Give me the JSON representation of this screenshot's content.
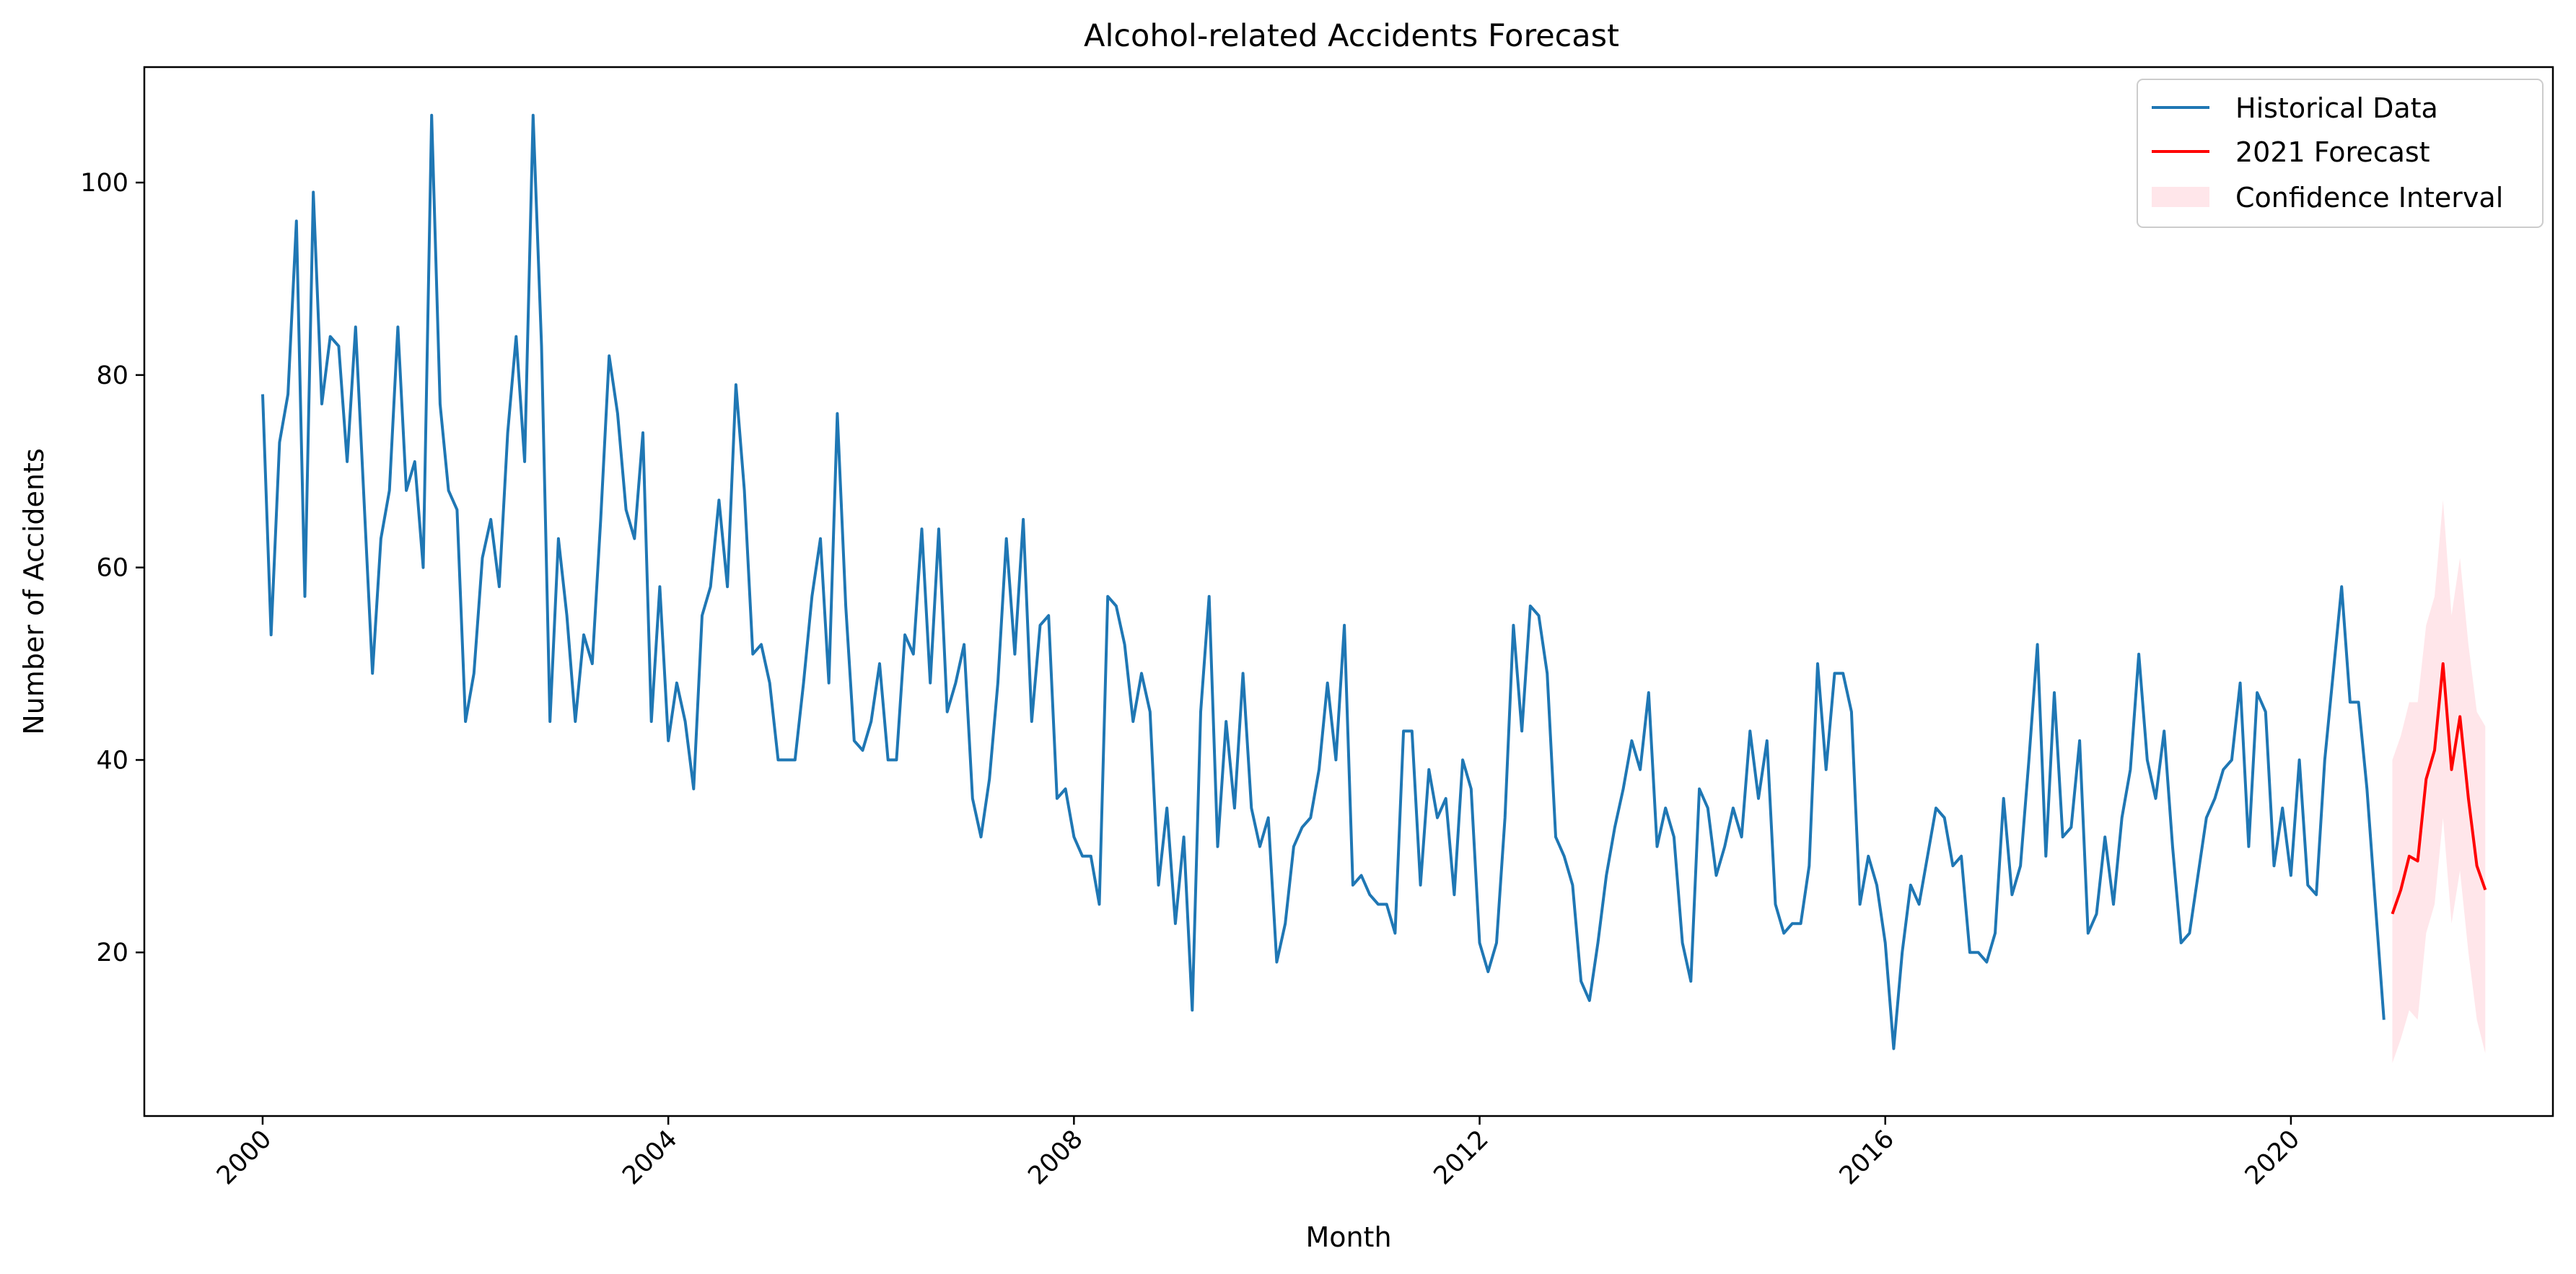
{
  "chart_data": {
    "type": "line",
    "title": "Alcohol-related Accidents Forecast",
    "xlabel": "Month",
    "ylabel": "Number of Accidents",
    "xlim": [
      "1998-11-01",
      "2022-08-01"
    ],
    "ylim": [
      3,
      112
    ],
    "x_ticks": [
      "2000",
      "2004",
      "2008",
      "2012",
      "2016",
      "2020"
    ],
    "y_ticks": [
      20,
      40,
      60,
      80,
      100
    ],
    "grid": false,
    "legend": {
      "placement": "top-right",
      "entries": [
        "Historical Data",
        "2021 Forecast",
        "Confidence Interval"
      ]
    },
    "colors": {
      "historical": "#1f77b4",
      "forecast": "#ff0000",
      "ci_fill": "#ffc0cb"
    },
    "series": [
      {
        "name": "Historical Data",
        "start": "2000-01",
        "step": "month",
        "values": [
          78,
          53,
          73,
          78,
          96,
          57,
          99,
          77,
          84,
          83,
          71,
          85,
          67,
          49,
          63,
          68,
          85,
          68,
          71,
          60,
          107,
          77,
          68,
          66,
          44,
          49,
          61,
          65,
          58,
          74,
          84,
          71,
          107,
          83,
          44,
          63,
          55,
          44,
          53,
          50,
          65,
          82,
          76,
          66,
          63,
          74,
          44,
          58,
          42,
          48,
          44,
          37,
          55,
          58,
          67,
          58,
          79,
          68,
          51,
          52,
          48,
          40,
          40,
          40,
          48,
          57,
          63,
          48,
          76,
          56,
          42,
          41,
          44,
          50,
          40,
          40,
          53,
          51,
          64,
          48,
          64,
          45,
          48,
          52,
          36,
          32,
          38,
          48,
          63,
          51,
          65,
          44,
          54,
          55,
          36,
          37,
          32,
          30,
          30,
          25,
          57,
          56,
          52,
          44,
          49,
          45,
          27,
          35,
          23,
          32,
          14,
          45,
          57,
          31,
          44,
          35,
          49,
          35,
          31,
          34,
          19,
          23,
          31,
          33,
          34,
          39,
          48,
          40,
          54,
          27,
          28,
          26,
          25,
          25,
          22,
          43,
          43,
          27,
          39,
          34,
          36,
          26,
          40,
          37,
          21,
          18,
          21,
          34,
          54,
          43,
          56,
          55,
          49,
          32,
          30,
          27,
          17,
          15,
          21,
          28,
          33,
          37,
          42,
          39,
          47,
          31,
          35,
          32,
          21,
          17,
          37,
          35,
          28,
          31,
          35,
          32,
          43,
          36,
          42,
          25,
          22,
          23,
          23,
          29,
          50,
          39,
          49,
          49,
          45,
          25,
          30,
          27,
          21,
          10,
          20,
          27,
          25,
          30,
          35,
          34,
          29,
          30,
          20,
          20,
          19,
          22,
          36,
          26,
          29,
          40,
          52,
          30,
          47,
          32,
          33,
          42,
          22,
          24,
          32,
          25,
          34,
          39,
          51,
          40,
          36,
          43,
          31,
          21,
          22,
          28,
          34,
          36,
          39,
          40,
          48,
          31,
          47,
          45,
          29,
          35,
          28,
          40,
          27,
          26,
          40,
          49,
          58,
          46,
          46,
          37,
          25,
          13
        ]
      },
      {
        "name": "2021 Forecast",
        "start": "2021-01",
        "step": "month",
        "values": [
          24,
          26.5,
          30,
          29.5,
          38,
          41,
          50,
          39,
          44.5,
          36,
          29,
          26.5
        ],
        "ci_lower": [
          8.5,
          11,
          14,
          13,
          22,
          25,
          34,
          23,
          28.5,
          20,
          13,
          9.5
        ],
        "ci_upper": [
          40,
          42.5,
          46,
          46,
          54,
          57,
          67,
          55,
          61,
          52,
          45,
          43.5
        ]
      }
    ]
  }
}
